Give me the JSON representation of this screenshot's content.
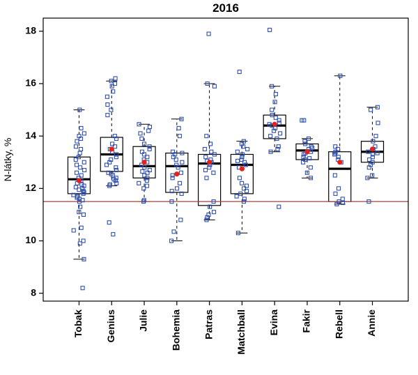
{
  "chart_data": {
    "type": "boxplot",
    "title": "2016",
    "ylabel": "N-látky, %",
    "xlabel": "",
    "ylim": [
      7.7,
      18.5
    ],
    "yticks": [
      8,
      10,
      12,
      14,
      16,
      18
    ],
    "grid": false,
    "legend": "none",
    "reference_line": {
      "y": 11.5,
      "color": "#9b4444"
    },
    "colors": {
      "point": "#2f4fae",
      "mean": "#e32219",
      "box": "#000000",
      "background": "#ffffff"
    },
    "categories": [
      "Tobak",
      "Genius",
      "Julie",
      "Bohemia",
      "Patras",
      "Matchball",
      "Evina",
      "Fakir",
      "Rebell",
      "Annie"
    ],
    "series": [
      {
        "name": "Tobak",
        "q1": 11.8,
        "median": 12.35,
        "q3": 13.2,
        "whisker_low": 9.3,
        "whisker_high": 15.0,
        "mean": 12.3,
        "points": [
          8.2,
          9.3,
          9.9,
          10.0,
          10.4,
          10.5,
          11.0,
          11.1,
          11.3,
          11.5,
          11.55,
          11.6,
          11.65,
          11.7,
          11.75,
          11.8,
          11.85,
          11.9,
          11.95,
          12.0,
          12.05,
          12.1,
          12.15,
          12.2,
          12.3,
          12.4,
          12.5,
          12.6,
          12.7,
          12.8,
          12.9,
          13.0,
          13.1,
          13.2,
          13.35,
          13.5,
          13.6,
          13.8,
          13.9,
          14.0,
          14.1,
          14.3,
          15.0
        ]
      },
      {
        "name": "Genius",
        "q1": 12.65,
        "median": 13.3,
        "q3": 13.95,
        "whisker_low": 12.1,
        "whisker_high": 16.1,
        "mean": 13.5,
        "points": [
          10.25,
          10.7,
          12.1,
          12.15,
          12.2,
          12.3,
          12.35,
          12.4,
          12.5,
          12.55,
          12.6,
          12.7,
          12.8,
          12.9,
          13.0,
          13.1,
          13.2,
          13.3,
          13.4,
          13.5,
          13.6,
          13.7,
          13.9,
          14.0,
          14.8,
          15.0,
          15.2,
          15.5,
          15.7,
          15.9,
          16.0,
          16.1,
          16.2
        ]
      },
      {
        "name": "Julie",
        "q1": 12.4,
        "median": 12.85,
        "q3": 13.6,
        "whisker_low": 11.5,
        "whisker_high": 14.45,
        "mean": 13.0,
        "points": [
          11.5,
          11.55,
          12.0,
          12.1,
          12.2,
          12.3,
          12.4,
          12.5,
          12.6,
          12.65,
          12.7,
          12.8,
          12.9,
          13.0,
          13.1,
          13.2,
          13.3,
          13.4,
          13.5,
          13.6,
          13.7,
          13.9,
          14.1,
          14.2,
          14.35,
          14.45
        ]
      },
      {
        "name": "Bohemia",
        "q1": 11.85,
        "median": 12.85,
        "q3": 13.35,
        "whisker_low": 10.0,
        "whisker_high": 14.65,
        "mean": 12.55,
        "points": [
          10.0,
          10.35,
          10.8,
          11.5,
          11.8,
          11.9,
          12.0,
          12.2,
          12.4,
          12.5,
          12.6,
          12.8,
          12.9,
          13.0,
          13.1,
          13.2,
          13.3,
          13.35,
          13.4,
          14.0,
          14.3,
          14.65
        ]
      },
      {
        "name": "Patras",
        "q1": 11.35,
        "median": 12.95,
        "q3": 13.3,
        "whisker_low": 10.8,
        "whisker_high": 16.0,
        "mean": 13.0,
        "points": [
          10.8,
          10.9,
          11.0,
          11.1,
          11.3,
          11.5,
          12.4,
          12.6,
          12.7,
          12.8,
          12.9,
          13.0,
          13.05,
          13.1,
          13.2,
          13.3,
          13.4,
          13.5,
          13.7,
          14.0,
          15.9,
          16.0,
          17.9
        ]
      },
      {
        "name": "Matchball",
        "q1": 11.8,
        "median": 12.9,
        "q3": 13.3,
        "whisker_low": 10.3,
        "whisker_high": 13.8,
        "mean": 12.75,
        "points": [
          10.3,
          11.5,
          11.6,
          11.7,
          11.8,
          11.9,
          12.0,
          12.1,
          12.2,
          12.4,
          12.8,
          12.9,
          13.0,
          13.05,
          13.1,
          13.2,
          13.3,
          13.4,
          13.5,
          13.6,
          13.7,
          13.8,
          16.45
        ]
      },
      {
        "name": "Evina",
        "q1": 13.9,
        "median": 14.4,
        "q3": 14.8,
        "whisker_low": 13.4,
        "whisker_high": 15.9,
        "mean": 14.45,
        "points": [
          11.3,
          13.4,
          13.5,
          13.6,
          13.9,
          14.0,
          14.1,
          14.2,
          14.3,
          14.4,
          14.45,
          14.5,
          14.6,
          14.7,
          14.8,
          15.0,
          15.3,
          15.6,
          15.9,
          18.05
        ]
      },
      {
        "name": "Fakir",
        "q1": 13.1,
        "median": 13.45,
        "q3": 13.7,
        "whisker_low": 12.4,
        "whisker_high": 13.9,
        "mean": 13.4,
        "points": [
          12.4,
          12.6,
          12.8,
          13.0,
          13.1,
          13.15,
          13.2,
          13.3,
          13.35,
          13.4,
          13.5,
          13.55,
          13.6,
          13.7,
          13.8,
          13.9,
          14.6,
          14.6
        ]
      },
      {
        "name": "Rebell",
        "q1": 11.5,
        "median": 12.75,
        "q3": 13.4,
        "whisker_low": 11.4,
        "whisker_high": 16.3,
        "mean": 13.0,
        "points": [
          11.4,
          11.45,
          11.5,
          11.6,
          11.8,
          12.0,
          12.5,
          13.0,
          13.1,
          13.2,
          13.3,
          13.35,
          13.4,
          13.5,
          13.6,
          16.3
        ]
      },
      {
        "name": "Annie",
        "q1": 13.0,
        "median": 13.4,
        "q3": 13.8,
        "whisker_low": 12.4,
        "whisker_high": 15.1,
        "mean": 13.5,
        "points": [
          11.5,
          12.4,
          12.5,
          12.8,
          12.9,
          13.0,
          13.1,
          13.2,
          13.3,
          13.35,
          13.4,
          13.5,
          13.6,
          13.8,
          14.0,
          14.5,
          15.0,
          15.1
        ]
      }
    ]
  }
}
